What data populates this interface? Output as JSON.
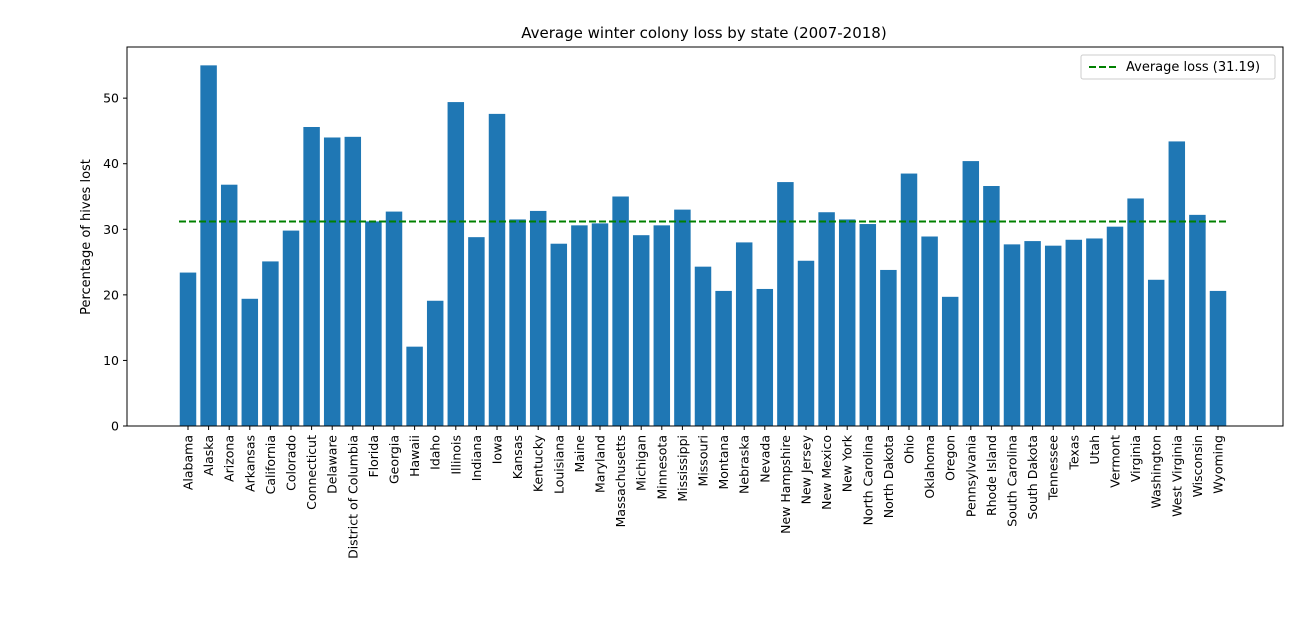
{
  "chart_data": {
    "type": "bar",
    "title": "Average winter colony loss by state (2007-2018)",
    "xlabel": "",
    "ylabel": "Percentage of hives lost",
    "ylim": [
      0,
      57.8
    ],
    "yticks": [
      0,
      10,
      20,
      30,
      40,
      50
    ],
    "bar_color": "#1f77b4",
    "average_line": {
      "label": "Average loss (31.19)",
      "value": 31.19,
      "color": "#008000",
      "style": "dashed"
    },
    "legend_position": "top-right",
    "grid": false,
    "categories": [
      "Alabama",
      "Alaska",
      "Arizona",
      "Arkansas",
      "California",
      "Colorado",
      "Connecticut",
      "Delaware",
      "District of Columbia",
      "Florida",
      "Georgia",
      "Hawaii",
      "Idaho",
      "Illinois",
      "Indiana",
      "Iowa",
      "Kansas",
      "Kentucky",
      "Louisiana",
      "Maine",
      "Maryland",
      "Massachusetts",
      "Michigan",
      "Minnesota",
      "Mississippi",
      "Missouri",
      "Montana",
      "Nebraska",
      "Nevada",
      "New Hampshire",
      "New Jersey",
      "New Mexico",
      "New York",
      "North Carolina",
      "North Dakota",
      "Ohio",
      "Oklahoma",
      "Oregon",
      "Pennsylvania",
      "Rhode Island",
      "South Carolina",
      "South Dakota",
      "Tennessee",
      "Texas",
      "Utah",
      "Vermont",
      "Virginia",
      "Washington",
      "West Virginia",
      "Wisconsin",
      "Wyoming"
    ],
    "values": [
      23.4,
      55.0,
      36.8,
      19.4,
      25.1,
      29.8,
      45.6,
      44.0,
      44.1,
      31.2,
      32.7,
      12.1,
      19.1,
      49.4,
      28.8,
      47.6,
      31.5,
      32.8,
      27.8,
      30.6,
      30.9,
      35.0,
      29.1,
      30.6,
      33.0,
      24.3,
      20.6,
      28.0,
      20.9,
      37.2,
      25.2,
      32.6,
      31.5,
      30.8,
      23.8,
      38.5,
      28.9,
      19.7,
      40.4,
      36.6,
      27.7,
      28.2,
      27.5,
      28.4,
      28.6,
      30.4,
      34.7,
      22.3,
      43.4,
      32.2,
      20.6
    ]
  }
}
